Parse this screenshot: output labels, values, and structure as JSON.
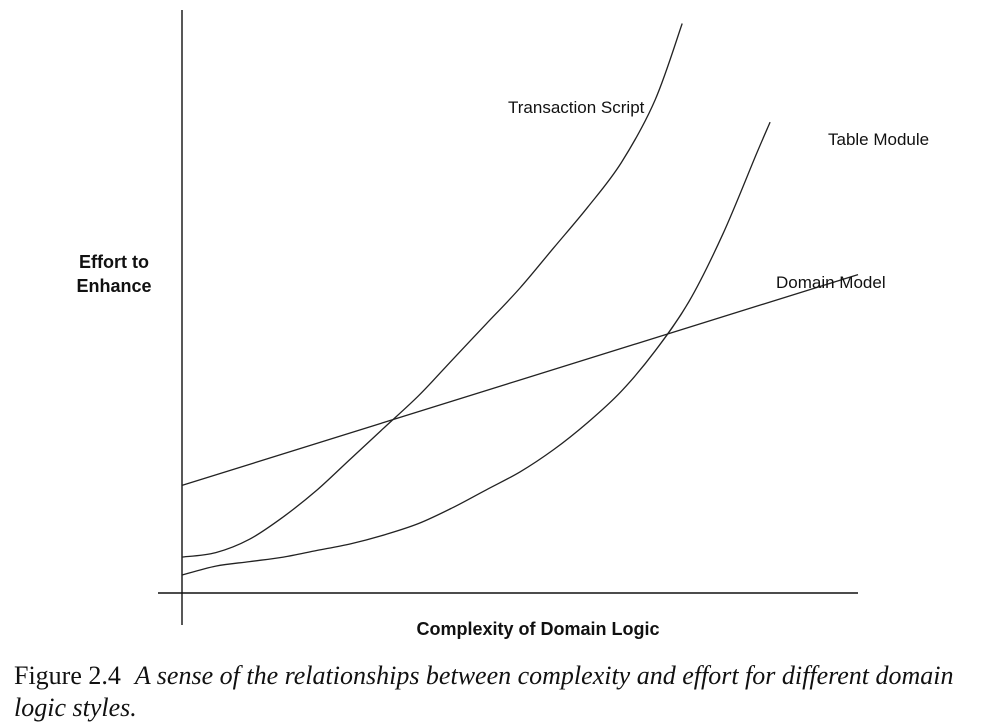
{
  "chart_data": {
    "type": "line",
    "title": "",
    "xlabel": "Complexity of Domain Logic",
    "ylabel_lines": [
      "Effort to",
      "Enhance"
    ],
    "grid": false,
    "series": [
      {
        "name": "Transaction Script",
        "x": [
          0,
          5,
          10,
          15,
          20,
          25,
          30,
          35,
          40,
          45,
          50,
          55,
          60,
          65,
          70,
          74
        ],
        "y": [
          8,
          9,
          12,
          17,
          23,
          30,
          37,
          44,
          52,
          60,
          68,
          77,
          86,
          96,
          110,
          127
        ]
      },
      {
        "name": "Table Module",
        "x": [
          0,
          5,
          10,
          15,
          20,
          25,
          30,
          35,
          40,
          45,
          50,
          55,
          60,
          65,
          70,
          75,
          80,
          85,
          87
        ],
        "y": [
          4,
          6,
          7,
          8,
          9.5,
          11,
          13,
          15.5,
          19,
          23,
          27,
          32,
          38,
          45,
          54,
          65,
          80,
          98,
          105
        ]
      },
      {
        "name": "Domain Model",
        "x": [
          0,
          100
        ],
        "y": [
          24,
          71
        ]
      }
    ],
    "xlim": [
      0,
      100
    ],
    "ylim": [
      0,
      130
    ]
  },
  "caption": {
    "figure_label": "Figure 2.4",
    "text": "A sense of the relationships between complexity and effort for different domain logic styles."
  }
}
